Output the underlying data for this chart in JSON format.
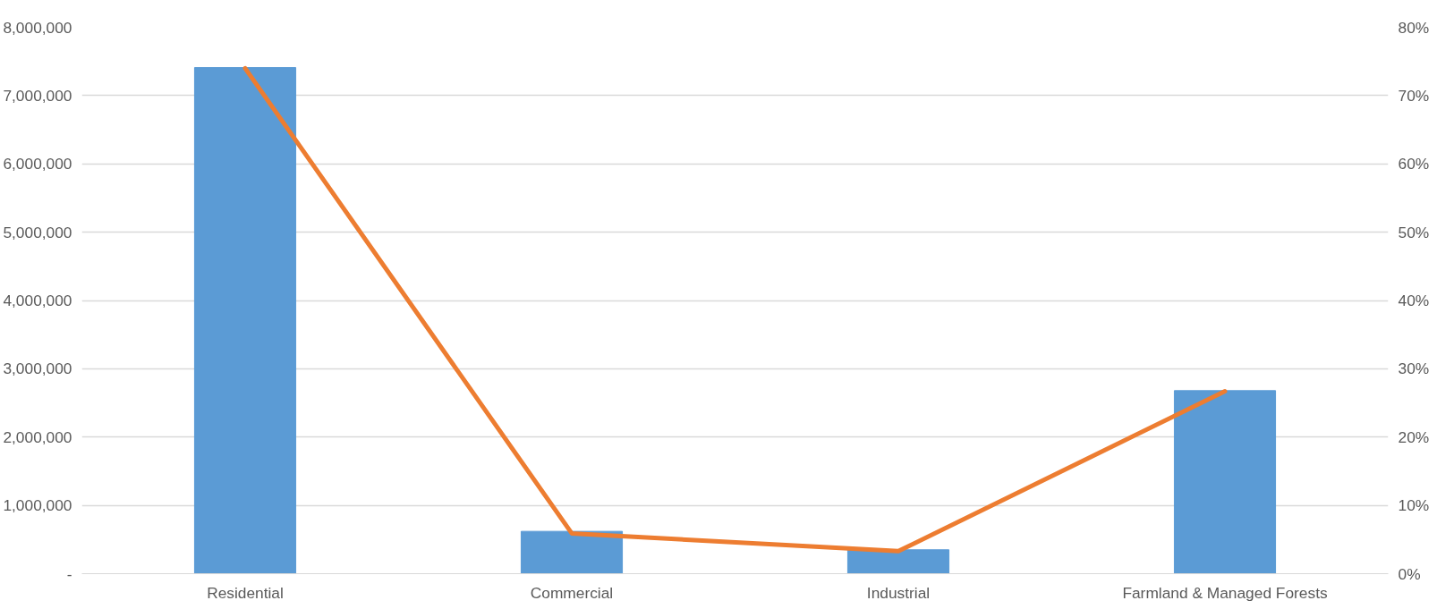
{
  "chart_data": {
    "type": "bar",
    "categories": [
      "Residential",
      "Commercial",
      "Industrial",
      "Farmland & Managed Forests"
    ],
    "series": [
      {
        "color": "#5b9bd5",
        "values": [
          7410000,
          620000,
          350000,
          2680000
        ]
      },
      {
        "type": "line",
        "axis": "y2",
        "color": "#ed7d31",
        "values": [
          74,
          5.9,
          3.3,
          26.7
        ]
      }
    ],
    "ylim": [
      0,
      8000000
    ],
    "yticks": [
      {
        "value": 0,
        "label": "-"
      },
      {
        "value": 1000000,
        "label": "1,000,000"
      },
      {
        "value": 2000000,
        "label": "2,000,000"
      },
      {
        "value": 3000000,
        "label": "3,000,000"
      },
      {
        "value": 4000000,
        "label": "4,000,000"
      },
      {
        "value": 5000000,
        "label": "5,000,000"
      },
      {
        "value": 6000000,
        "label": "6,000,000"
      },
      {
        "value": 7000000,
        "label": "7,000,000"
      },
      {
        "value": 8000000,
        "label": "8,000,000"
      }
    ],
    "y2lim": [
      0,
      80
    ],
    "y2ticks": [
      {
        "value": 0,
        "label": "0%"
      },
      {
        "value": 10,
        "label": "10%"
      },
      {
        "value": 20,
        "label": "20%"
      },
      {
        "value": 30,
        "label": "30%"
      },
      {
        "value": 40,
        "label": "40%"
      },
      {
        "value": 50,
        "label": "50%"
      },
      {
        "value": 60,
        "label": "60%"
      },
      {
        "value": 70,
        "label": "70%"
      },
      {
        "value": 80,
        "label": "80%"
      }
    ],
    "grid": "y"
  }
}
